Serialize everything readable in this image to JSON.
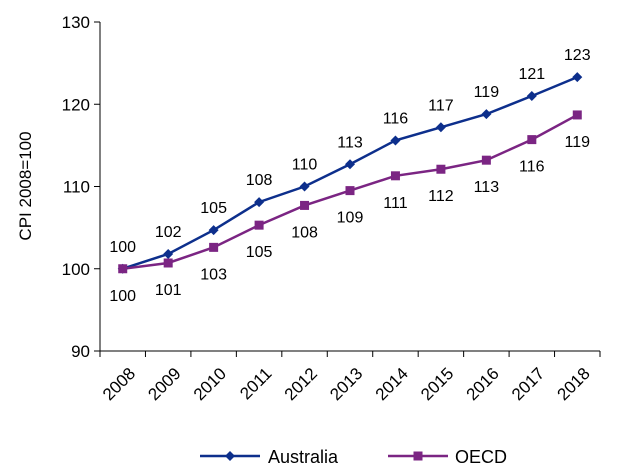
{
  "chart_data": {
    "type": "line",
    "ylabel": "CPI 2008=100",
    "xlabel": "",
    "title": "",
    "ylim": [
      90,
      130
    ],
    "yticks": [
      90,
      100,
      110,
      120,
      130
    ],
    "categories": [
      "2008",
      "2009",
      "2010",
      "2011",
      "2012",
      "2013",
      "2014",
      "2015",
      "2016",
      "2017",
      "2018"
    ],
    "series": [
      {
        "name": "Australia",
        "color": "#0d2f8c",
        "marker": "diamond",
        "values": [
          100,
          101.8,
          104.7,
          108.1,
          110.0,
          112.7,
          115.6,
          117.2,
          118.8,
          121.0,
          123.3
        ],
        "labels": [
          "100",
          "102",
          "105",
          "108",
          "110",
          "113",
          "116",
          "117",
          "119",
          "121",
          "123"
        ]
      },
      {
        "name": "OECD",
        "color": "#7b2583",
        "marker": "square",
        "values": [
          100,
          100.7,
          102.6,
          105.3,
          107.7,
          109.5,
          111.3,
          112.1,
          113.2,
          115.7,
          118.7
        ],
        "labels": [
          "100",
          "101",
          "103",
          "105",
          "108",
          "109",
          "111",
          "112",
          "113",
          "116",
          "119"
        ]
      }
    ],
    "legend_position": "bottom",
    "grid": false
  }
}
